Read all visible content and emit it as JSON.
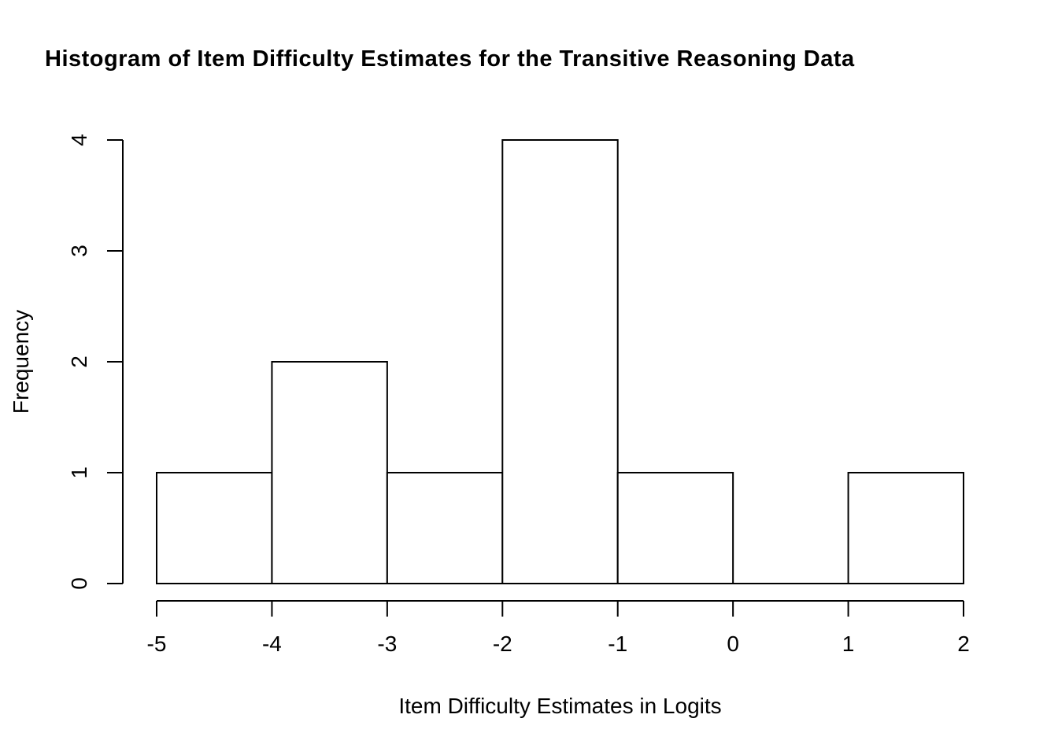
{
  "chart_data": {
    "type": "bar",
    "subtype": "histogram",
    "title": "Histogram of Item Difficulty Estimates for the Transitive Reasoning Data",
    "xlabel": "Item Difficulty Estimates in Logits",
    "ylabel": "Frequency",
    "bin_edges": [
      -5,
      -4,
      -3,
      -2,
      -1,
      0,
      1,
      2
    ],
    "counts": [
      1,
      2,
      1,
      4,
      1,
      0,
      1
    ],
    "x_tick_labels": [
      "-5",
      "-4",
      "-3",
      "-2",
      "-1",
      "0",
      "1",
      "2"
    ],
    "y_tick_labels": [
      "0",
      "1",
      "2",
      "3",
      "4"
    ],
    "xlim": [
      -5,
      2
    ],
    "ylim": [
      0,
      4
    ],
    "grid": false,
    "legend": false,
    "colors": {
      "background": "#ffffff",
      "stroke": "#000000",
      "bar_fill": "#ffffff",
      "text": "#000000"
    }
  }
}
